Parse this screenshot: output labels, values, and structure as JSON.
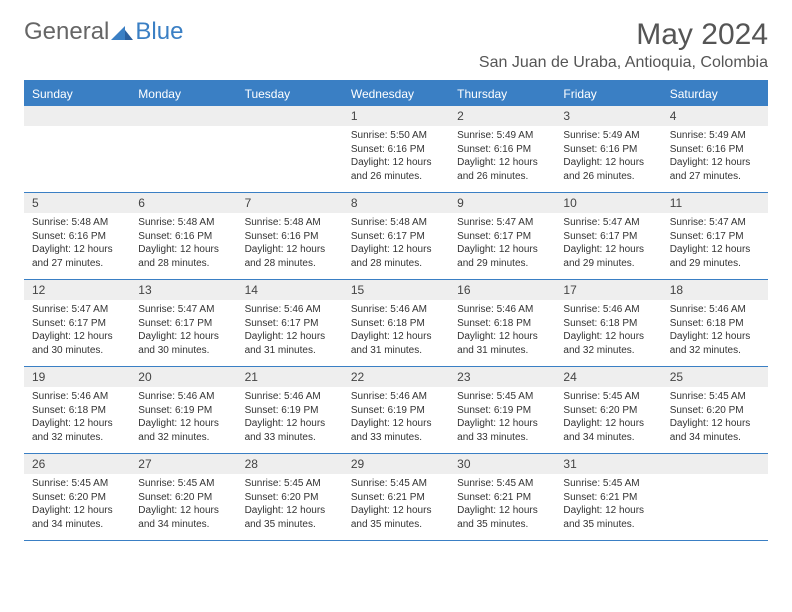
{
  "logo": {
    "general": "General",
    "blue": "Blue"
  },
  "title": "May 2024",
  "location": "San Juan de Uraba, Antioquia, Colombia",
  "weekdays": [
    "Sunday",
    "Monday",
    "Tuesday",
    "Wednesday",
    "Thursday",
    "Friday",
    "Saturday"
  ],
  "colors": {
    "header_bg": "#3a7fc4",
    "header_text": "#ffffff",
    "daynum_bg": "#eeeeee",
    "border": "#3a7fc4",
    "text": "#333333"
  },
  "typography": {
    "title_fontsize": 30,
    "location_fontsize": 16,
    "weekday_fontsize": 12,
    "daynum_fontsize": 12,
    "cell_fontsize": 10
  },
  "weeks": [
    [
      null,
      null,
      null,
      {
        "n": "1",
        "sr": "Sunrise: 5:50 AM",
        "ss": "Sunset: 6:16 PM",
        "dl": "Daylight: 12 hours and 26 minutes."
      },
      {
        "n": "2",
        "sr": "Sunrise: 5:49 AM",
        "ss": "Sunset: 6:16 PM",
        "dl": "Daylight: 12 hours and 26 minutes."
      },
      {
        "n": "3",
        "sr": "Sunrise: 5:49 AM",
        "ss": "Sunset: 6:16 PM",
        "dl": "Daylight: 12 hours and 26 minutes."
      },
      {
        "n": "4",
        "sr": "Sunrise: 5:49 AM",
        "ss": "Sunset: 6:16 PM",
        "dl": "Daylight: 12 hours and 27 minutes."
      }
    ],
    [
      {
        "n": "5",
        "sr": "Sunrise: 5:48 AM",
        "ss": "Sunset: 6:16 PM",
        "dl": "Daylight: 12 hours and 27 minutes."
      },
      {
        "n": "6",
        "sr": "Sunrise: 5:48 AM",
        "ss": "Sunset: 6:16 PM",
        "dl": "Daylight: 12 hours and 28 minutes."
      },
      {
        "n": "7",
        "sr": "Sunrise: 5:48 AM",
        "ss": "Sunset: 6:16 PM",
        "dl": "Daylight: 12 hours and 28 minutes."
      },
      {
        "n": "8",
        "sr": "Sunrise: 5:48 AM",
        "ss": "Sunset: 6:17 PM",
        "dl": "Daylight: 12 hours and 28 minutes."
      },
      {
        "n": "9",
        "sr": "Sunrise: 5:47 AM",
        "ss": "Sunset: 6:17 PM",
        "dl": "Daylight: 12 hours and 29 minutes."
      },
      {
        "n": "10",
        "sr": "Sunrise: 5:47 AM",
        "ss": "Sunset: 6:17 PM",
        "dl": "Daylight: 12 hours and 29 minutes."
      },
      {
        "n": "11",
        "sr": "Sunrise: 5:47 AM",
        "ss": "Sunset: 6:17 PM",
        "dl": "Daylight: 12 hours and 29 minutes."
      }
    ],
    [
      {
        "n": "12",
        "sr": "Sunrise: 5:47 AM",
        "ss": "Sunset: 6:17 PM",
        "dl": "Daylight: 12 hours and 30 minutes."
      },
      {
        "n": "13",
        "sr": "Sunrise: 5:47 AM",
        "ss": "Sunset: 6:17 PM",
        "dl": "Daylight: 12 hours and 30 minutes."
      },
      {
        "n": "14",
        "sr": "Sunrise: 5:46 AM",
        "ss": "Sunset: 6:17 PM",
        "dl": "Daylight: 12 hours and 31 minutes."
      },
      {
        "n": "15",
        "sr": "Sunrise: 5:46 AM",
        "ss": "Sunset: 6:18 PM",
        "dl": "Daylight: 12 hours and 31 minutes."
      },
      {
        "n": "16",
        "sr": "Sunrise: 5:46 AM",
        "ss": "Sunset: 6:18 PM",
        "dl": "Daylight: 12 hours and 31 minutes."
      },
      {
        "n": "17",
        "sr": "Sunrise: 5:46 AM",
        "ss": "Sunset: 6:18 PM",
        "dl": "Daylight: 12 hours and 32 minutes."
      },
      {
        "n": "18",
        "sr": "Sunrise: 5:46 AM",
        "ss": "Sunset: 6:18 PM",
        "dl": "Daylight: 12 hours and 32 minutes."
      }
    ],
    [
      {
        "n": "19",
        "sr": "Sunrise: 5:46 AM",
        "ss": "Sunset: 6:18 PM",
        "dl": "Daylight: 12 hours and 32 minutes."
      },
      {
        "n": "20",
        "sr": "Sunrise: 5:46 AM",
        "ss": "Sunset: 6:19 PM",
        "dl": "Daylight: 12 hours and 32 minutes."
      },
      {
        "n": "21",
        "sr": "Sunrise: 5:46 AM",
        "ss": "Sunset: 6:19 PM",
        "dl": "Daylight: 12 hours and 33 minutes."
      },
      {
        "n": "22",
        "sr": "Sunrise: 5:46 AM",
        "ss": "Sunset: 6:19 PM",
        "dl": "Daylight: 12 hours and 33 minutes."
      },
      {
        "n": "23",
        "sr": "Sunrise: 5:45 AM",
        "ss": "Sunset: 6:19 PM",
        "dl": "Daylight: 12 hours and 33 minutes."
      },
      {
        "n": "24",
        "sr": "Sunrise: 5:45 AM",
        "ss": "Sunset: 6:20 PM",
        "dl": "Daylight: 12 hours and 34 minutes."
      },
      {
        "n": "25",
        "sr": "Sunrise: 5:45 AM",
        "ss": "Sunset: 6:20 PM",
        "dl": "Daylight: 12 hours and 34 minutes."
      }
    ],
    [
      {
        "n": "26",
        "sr": "Sunrise: 5:45 AM",
        "ss": "Sunset: 6:20 PM",
        "dl": "Daylight: 12 hours and 34 minutes."
      },
      {
        "n": "27",
        "sr": "Sunrise: 5:45 AM",
        "ss": "Sunset: 6:20 PM",
        "dl": "Daylight: 12 hours and 34 minutes."
      },
      {
        "n": "28",
        "sr": "Sunrise: 5:45 AM",
        "ss": "Sunset: 6:20 PM",
        "dl": "Daylight: 12 hours and 35 minutes."
      },
      {
        "n": "29",
        "sr": "Sunrise: 5:45 AM",
        "ss": "Sunset: 6:21 PM",
        "dl": "Daylight: 12 hours and 35 minutes."
      },
      {
        "n": "30",
        "sr": "Sunrise: 5:45 AM",
        "ss": "Sunset: 6:21 PM",
        "dl": "Daylight: 12 hours and 35 minutes."
      },
      {
        "n": "31",
        "sr": "Sunrise: 5:45 AM",
        "ss": "Sunset: 6:21 PM",
        "dl": "Daylight: 12 hours and 35 minutes."
      },
      null
    ]
  ]
}
